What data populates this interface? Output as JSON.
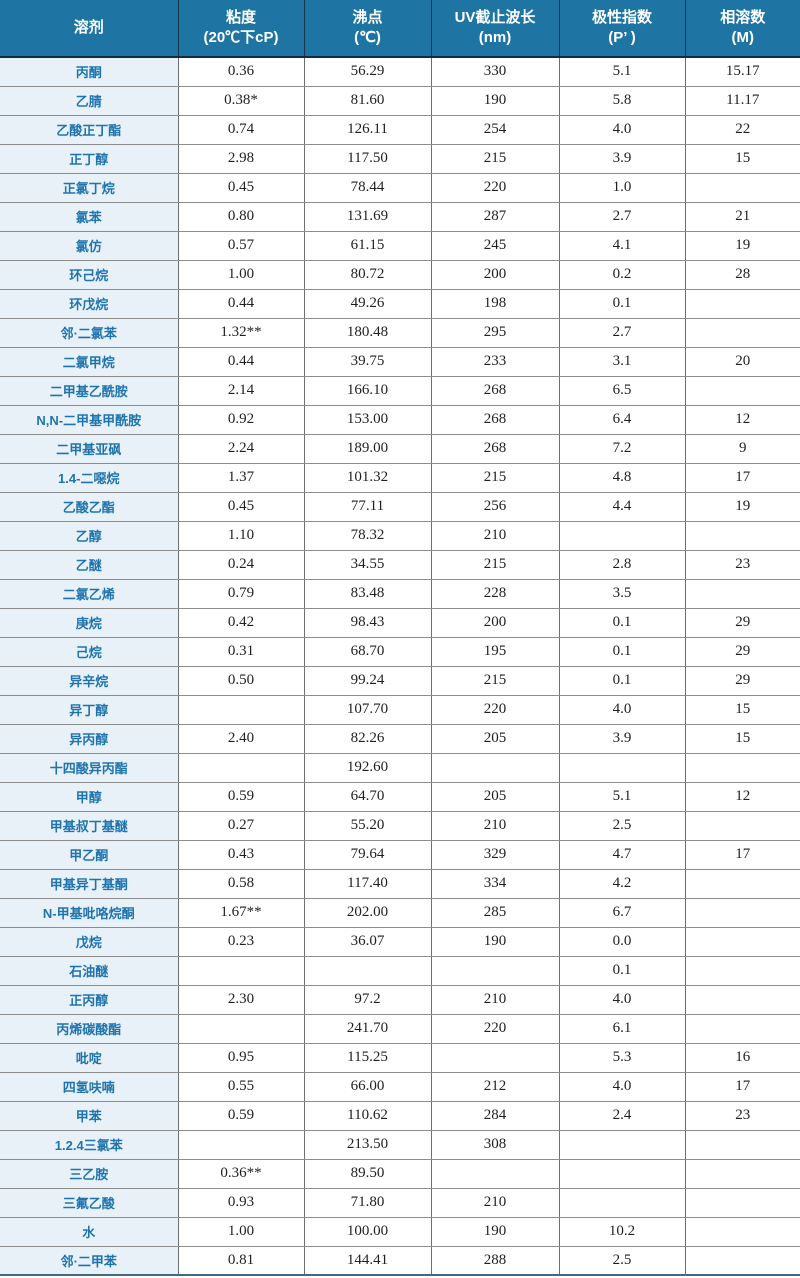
{
  "colors": {
    "header_bg": "#1e74a3",
    "header_divider": "#16364d",
    "header_bottom_border": "#0e2d42",
    "solvent_col_bg": "#e9f1f8",
    "solvent_text": "#1f74ad",
    "grid_vertical": "#6e6e6e",
    "grid_horizontal": "#8c8c8c",
    "table_bottom_border": "#3f6a85",
    "value_text": "#1f1f1f"
  },
  "table": {
    "columns": [
      {
        "label": "溶剂",
        "unit": ""
      },
      {
        "label": "粘度",
        "unit": "(20℃下cP)"
      },
      {
        "label": "沸点",
        "unit": "(℃)"
      },
      {
        "label": "UV截止波长",
        "unit": "(nm)"
      },
      {
        "label": "极性指数",
        "unit": "(P’ )"
      },
      {
        "label": "相溶数",
        "unit": "(M)"
      }
    ],
    "rows": [
      [
        "丙酮",
        "0.36",
        "56.29",
        "330",
        "5.1",
        "15.17"
      ],
      [
        "乙腈",
        "0.38*",
        "81.60",
        "190",
        "5.8",
        "11.17"
      ],
      [
        "乙酸正丁酯",
        "0.74",
        "126.11",
        "254",
        "4.0",
        "22"
      ],
      [
        "正丁醇",
        "2.98",
        "117.50",
        "215",
        "3.9",
        "15"
      ],
      [
        "正氯丁烷",
        "0.45",
        "78.44",
        "220",
        "1.0",
        ""
      ],
      [
        "氯苯",
        "0.80",
        "131.69",
        "287",
        "2.7",
        "21"
      ],
      [
        "氯仿",
        "0.57",
        "61.15",
        "245",
        "4.1",
        "19"
      ],
      [
        "环己烷",
        "1.00",
        "80.72",
        "200",
        "0.2",
        "28"
      ],
      [
        "环戊烷",
        "0.44",
        "49.26",
        "198",
        "0.1",
        ""
      ],
      [
        "邻·二氯苯",
        "1.32**",
        "180.48",
        "295",
        "2.7",
        ""
      ],
      [
        "二氯甲烷",
        "0.44",
        "39.75",
        "233",
        "3.1",
        "20"
      ],
      [
        "二甲基乙酰胺",
        "2.14",
        "166.10",
        "268",
        "6.5",
        ""
      ],
      [
        "N,N-二甲基甲酰胺",
        "0.92",
        "153.00",
        "268",
        "6.4",
        "12"
      ],
      [
        "二甲基亚砜",
        "2.24",
        "189.00",
        "268",
        "7.2",
        "9"
      ],
      [
        "1.4-二噁烷",
        "1.37",
        "101.32",
        "215",
        "4.8",
        "17"
      ],
      [
        "乙酸乙酯",
        "0.45",
        "77.11",
        "256",
        "4.4",
        "19"
      ],
      [
        "乙醇",
        "1.10",
        "78.32",
        "210",
        "",
        ""
      ],
      [
        "乙醚",
        "0.24",
        "34.55",
        "215",
        "2.8",
        "23"
      ],
      [
        "二氯乙烯",
        "0.79",
        "83.48",
        "228",
        "3.5",
        ""
      ],
      [
        "庚烷",
        "0.42",
        "98.43",
        "200",
        "0.1",
        "29"
      ],
      [
        "己烷",
        "0.31",
        "68.70",
        "195",
        "0.1",
        "29"
      ],
      [
        "异辛烷",
        "0.50",
        "99.24",
        "215",
        "0.1",
        "29"
      ],
      [
        "异丁醇",
        "",
        "107.70",
        "220",
        "4.0",
        "15"
      ],
      [
        "异丙醇",
        "2.40",
        "82.26",
        "205",
        "3.9",
        "15"
      ],
      [
        "十四酸异丙酯",
        "",
        "192.60",
        "",
        "",
        ""
      ],
      [
        "甲醇",
        "0.59",
        "64.70",
        "205",
        "5.1",
        "12"
      ],
      [
        "甲基叔丁基醚",
        "0.27",
        "55.20",
        "210",
        "2.5",
        ""
      ],
      [
        "甲乙酮",
        "0.43",
        "79.64",
        "329",
        "4.7",
        "17"
      ],
      [
        "甲基异丁基酮",
        "0.58",
        "117.40",
        "334",
        "4.2",
        ""
      ],
      [
        "N-甲基吡咯烷酮",
        "1.67**",
        "202.00",
        "285",
        "6.7",
        ""
      ],
      [
        "戊烷",
        "0.23",
        "36.07",
        "190",
        "0.0",
        ""
      ],
      [
        "石油醚",
        "",
        "",
        "",
        "0.1",
        ""
      ],
      [
        "正丙醇",
        "2.30",
        "97.2",
        "210",
        "4.0",
        ""
      ],
      [
        "丙烯碳酸酯",
        "",
        "241.70",
        "220",
        "6.1",
        ""
      ],
      [
        "吡啶",
        "0.95",
        "115.25",
        "",
        "5.3",
        "16"
      ],
      [
        "四氢呋喃",
        "0.55",
        "66.00",
        "212",
        "4.0",
        "17"
      ],
      [
        "甲苯",
        "0.59",
        "110.62",
        "284",
        "2.4",
        "23"
      ],
      [
        "1.2.4三氯苯",
        "",
        "213.50",
        "308",
        "",
        ""
      ],
      [
        "三乙胺",
        "0.36**",
        "89.50",
        "",
        "",
        ""
      ],
      [
        "三氟乙酸",
        "0.93",
        "71.80",
        "210",
        "",
        ""
      ],
      [
        "水",
        "1.00",
        "100.00",
        "190",
        "10.2",
        ""
      ],
      [
        "邻·二甲苯",
        "0.81",
        "144.41",
        "288",
        "2.5",
        ""
      ]
    ]
  }
}
